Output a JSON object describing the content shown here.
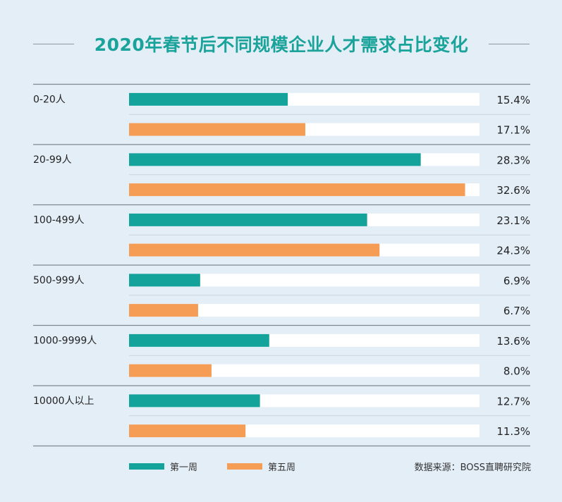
{
  "colors": {
    "background": "#e4eef7",
    "title": "#1aa39a",
    "week1": "#14a39a",
    "week5": "#f59c55",
    "track": "#ffffff",
    "separator": "#7d8790"
  },
  "source": "数据来源：BOSS直聘研究院",
  "chart_data": {
    "type": "bar",
    "orientation": "horizontal",
    "title": "2020年春节后不同规模企业人才需求占比变化",
    "categories": [
      "0-20人",
      "20-99人",
      "100-499人",
      "500-999人",
      "1000-9999人",
      "10000人以上"
    ],
    "series": [
      {
        "name": "第一周",
        "color": "#14a39a",
        "values": [
          15.4,
          28.3,
          23.1,
          6.9,
          13.6,
          12.7
        ],
        "labels": [
          "15.4%",
          "28.3%",
          "23.1%",
          "6.9%",
          "13.6%",
          "12.7%"
        ]
      },
      {
        "name": "第五周",
        "color": "#f59c55",
        "values": [
          17.1,
          32.6,
          24.3,
          6.7,
          8.0,
          11.3
        ],
        "labels": [
          "17.1%",
          "32.6%",
          "24.3%",
          "6.7%",
          "8.0%",
          "11.3%"
        ]
      }
    ],
    "unit": "%",
    "xlim": [
      0,
      34
    ],
    "legend": "bottom-left"
  }
}
